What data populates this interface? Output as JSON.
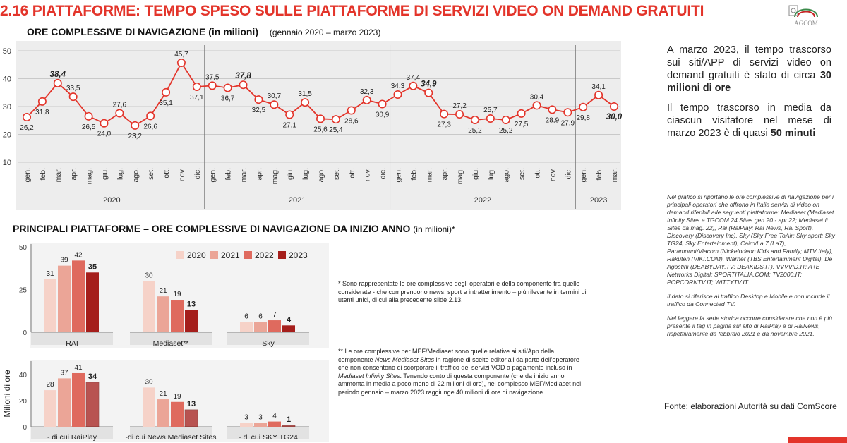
{
  "header": {
    "title": "2.16 PIATTAFORME: TEMPO SPESO SULLE PIATTAFORME DI SERVIZI VIDEO ON DEMAND GRATUITI",
    "logo_text": "AGCOM"
  },
  "chart_data": [
    {
      "type": "line",
      "title": "ORE COMPLESSIVE DI NAVIGAZIONE (in milioni)",
      "subtitle": "(gennaio 2020 – marzo 2023)",
      "ylim": [
        10,
        50
      ],
      "yticks": [
        10,
        20,
        30,
        40,
        50
      ],
      "grid": true,
      "color": "#e3342a",
      "x": [
        "gen.",
        "feb.",
        "mar.",
        "apr.",
        "mag.",
        "giu.",
        "lug.",
        "ago.",
        "set.",
        "ott.",
        "nov.",
        "dic.",
        "gen.",
        "feb.",
        "mar.",
        "apr.",
        "mag.",
        "giu.",
        "lug.",
        "ago.",
        "set.",
        "ott.",
        "nov.",
        "dic.",
        "gen.",
        "feb.",
        "mar.",
        "apr.",
        "mag.",
        "giu.",
        "lug.",
        "ago.",
        "set.",
        "ott.",
        "nov.",
        "dic.",
        "gen.",
        "feb.",
        "mar."
      ],
      "years": [
        {
          "label": "2020",
          "start": 0,
          "end": 11
        },
        {
          "label": "2021",
          "start": 12,
          "end": 23
        },
        {
          "label": "2022",
          "start": 24,
          "end": 35
        },
        {
          "label": "2023",
          "start": 36,
          "end": 38
        }
      ],
      "values": [
        26.2,
        31.8,
        38.4,
        33.5,
        26.5,
        24.0,
        27.6,
        23.2,
        26.6,
        35.1,
        45.7,
        37.1,
        37.5,
        36.7,
        37.8,
        32.5,
        30.7,
        27.1,
        31.5,
        25.6,
        25.4,
        28.6,
        32.3,
        30.9,
        34.3,
        37.4,
        34.9,
        27.3,
        27.2,
        25.2,
        25.7,
        25.2,
        27.5,
        30.4,
        28.9,
        27.9,
        29.8,
        34.1,
        30.0
      ],
      "labels": [
        "26,2",
        "31,8",
        "38,4",
        "33,5",
        "26,5",
        "24,0",
        "27,6",
        "23,2",
        "26,6",
        "35,1",
        "45,7",
        "37,1",
        "37,5",
        "36,7",
        "37,8",
        "32,5",
        "30,7",
        "27,1",
        "31,5",
        "25,6",
        "25,4",
        "28,6",
        "32,3",
        "30,9",
        "34,3",
        "37,4",
        "34,9",
        "27,3",
        "27,2",
        "25,2",
        "25,7",
        "25,2",
        "27,5",
        "30,4",
        "28,9",
        "27,9",
        "29,8",
        "34,1",
        "30,0"
      ],
      "highlighted": [
        2,
        14,
        26,
        38
      ]
    },
    {
      "type": "bar",
      "title": "PRINCIPALI PIATTAFORME – ORE COMPLESSIVE DI NAVIGAZIONE DA INIZIO ANNO",
      "unit": "(in milioni)*",
      "ylabel": "Milioni di ore",
      "ylim": [
        0,
        50
      ],
      "legend_position": "top-right",
      "series": [
        {
          "name": "2020",
          "color": "#f6d2c8"
        },
        {
          "name": "2021",
          "color": "#eba597"
        },
        {
          "name": "2022",
          "color": "#df6a5e"
        },
        {
          "name": "2023",
          "color": "#a51e1b"
        }
      ],
      "panels": [
        {
          "yticks": [
            0,
            25,
            50
          ],
          "groups": [
            {
              "label": "RAI",
              "values": [
                31,
                39,
                42,
                35
              ]
            },
            {
              "label": "Mediaset**",
              "values": [
                30,
                21,
                19,
                13
              ]
            },
            {
              "label": "Sky",
              "values": [
                6,
                6,
                7,
                4
              ]
            }
          ]
        },
        {
          "yticks": [
            0,
            20,
            40
          ],
          "ymax": 48,
          "groups": [
            {
              "label": "- di cui RaiPlay",
              "values": [
                28,
                37,
                41,
                34
              ]
            },
            {
              "label": "-di cui News Mediaset Sites",
              "values": [
                30,
                21,
                19,
                13
              ]
            },
            {
              "label": "- di cui SKY TG24",
              "values": [
                3,
                3,
                4,
                1
              ]
            }
          ]
        }
      ]
    }
  ],
  "notes": {
    "note1": "* Sono rappresentate le ore complessive degli operatori e della componente fra quelle considerate - che comprendono news, sport e intrattenimento – più rilevante in termini di utenti unici, di cui alla precedente slide 2.13.",
    "note2_a": "** Le ore complessive per MEF/Mediaset sono quelle relative ai siti/App della componente ",
    "note2_b": "News Mediaset Sites",
    "note2_c": " in ragione di scelte editoriali da parte dell'operatore che non consentono di scorporare il traffico dei servizi VOD a pagamento incluso in ",
    "note2_d": "Mediaset Infinity Sites",
    "note2_e": ". Tenendo conto di questa componente (che da inizio anno ammonta in media a poco meno di 22 milioni di ore), nel complesso MEF/Mediaset nel periodo gennaio – marzo 2023 raggiunge 40 milioni di ore di navigazione."
  },
  "side": {
    "p1_a": "A marzo 2023, il tempo trascorso sui siti/APP di servizi video on demand gratuiti è stato di circa ",
    "p1_b": "30 milioni di ore",
    "p2_a": "Il tempo trascorso in media da ciascun visitatore nel mese di marzo 2023 è di quasi ",
    "p2_b": "50 minuti",
    "method1": "Nel grafico si riportano le ore complessive di navigazione per i principali operatori che offrono in Italia servizi di video on demand riferibili alle seguenti piattaforme: Mediaset (Mediaset Infinity Sites e TGCOM 24 Sites gen.20 - apr.22; Mediaset.it Sites da mag. 22), Rai (RaiPlay; Rai News, Rai Sport), Discovery (Discovery Inc), Sky (Sky Free ToAir; Sky sport; Sky TG24, Sky Entertainment), Cairo/La 7 (La7), Paramount/Viacom (Nickelodeon Kids and Family; MTV Italy), Rakuten (VIKI.COM), Warner (TBS Entertainment Digital), De Agostini (DEABYDAY.TV; DEAKIDS.IT), VVVVID.IT; A+E Networks Digital; SPORTITALIA.COM; TV2000.IT; POPCORNTV.IT; WITTYTV.IT.",
    "method2": "Il dato si riferisce al traffico Desktop e Mobile e non include il traffico da Connected TV.",
    "method3": "Nel leggere la serie storica occorre considerare che non è più presente il tag in pagina sul sito di RaiPlay e di RaiNews, rispettivamente da febbraio 2021 e da novembre 2021.",
    "source": "Fonte: elaborazioni Autorità su dati ComScore"
  }
}
